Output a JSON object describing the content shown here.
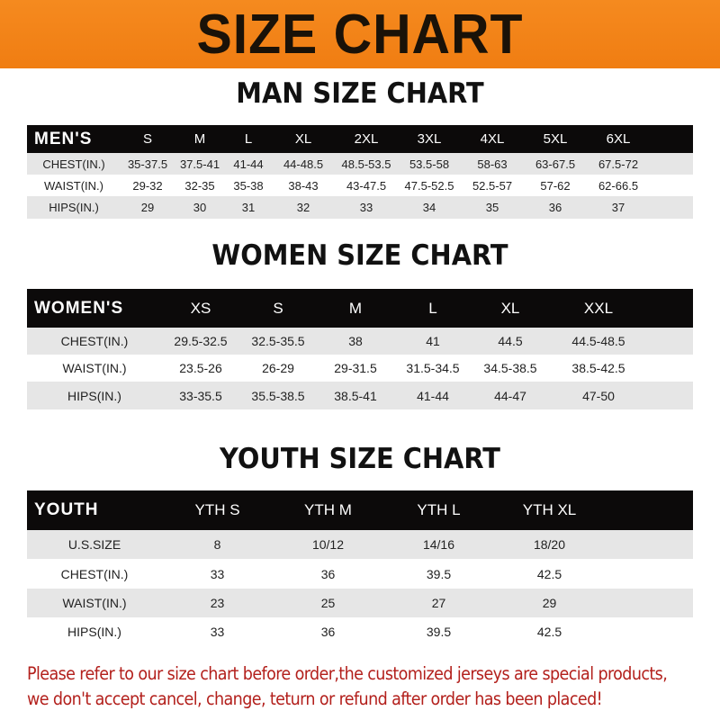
{
  "title": "SIZE CHART",
  "colors": {
    "banner": "#f58a1f",
    "header_row": "#0c0a0a",
    "stripe": "#e6e6e6",
    "notice": "#b3201c"
  },
  "men": {
    "title": "MAN SIZE CHART",
    "header": [
      "MEN'S",
      "S",
      "M",
      "L",
      "XL",
      "2XL",
      "3XL",
      "4XL",
      "5XL",
      "6XL"
    ],
    "rows": [
      [
        "CHEST(IN.)",
        "35-37.5",
        "37.5-41",
        "41-44",
        "44-48.5",
        "48.5-53.5",
        "53.5-58",
        "58-63",
        "63-67.5",
        "67.5-72"
      ],
      [
        "WAIST(IN.)",
        "29-32",
        "32-35",
        "35-38",
        "38-43",
        "43-47.5",
        "47.5-52.5",
        "52.5-57",
        "57-62",
        "62-66.5"
      ],
      [
        "HIPS(IN.)",
        "29",
        "30",
        "31",
        "32",
        "33",
        "34",
        "35",
        "36",
        "37"
      ]
    ]
  },
  "women": {
    "title": "WOMEN SIZE CHART",
    "header": [
      "WOMEN'S",
      "XS",
      "S",
      "M",
      "L",
      "XL",
      "XXL"
    ],
    "rows": [
      [
        "CHEST(IN.)",
        "29.5-32.5",
        "32.5-35.5",
        "38",
        "41",
        "44.5",
        "44.5-48.5"
      ],
      [
        "WAIST(IN.)",
        "23.5-26",
        "26-29",
        "29-31.5",
        "31.5-34.5",
        "34.5-38.5",
        "38.5-42.5"
      ],
      [
        "HIPS(IN.)",
        "33-35.5",
        "35.5-38.5",
        "38.5-41",
        "41-44",
        "44-47",
        "47-50"
      ]
    ]
  },
  "youth": {
    "title": "YOUTH SIZE CHART",
    "header": [
      "YOUTH",
      "YTH S",
      "YTH M",
      "YTH L",
      "YTH XL"
    ],
    "rows": [
      [
        "U.S.SIZE",
        "8",
        "10/12",
        "14/16",
        "18/20"
      ],
      [
        "CHEST(IN.)",
        "33",
        "36",
        "39.5",
        "42.5"
      ],
      [
        "WAIST(IN.)",
        "23",
        "25",
        "27",
        "29"
      ],
      [
        "HIPS(IN.)",
        "33",
        "36",
        "39.5",
        "42.5"
      ]
    ]
  },
  "notice": {
    "line1": "Please refer to our size chart before order,the customized jerseys are special products,",
    "line2": "we don't accept cancel, change, teturn or refund after order has been placed!"
  }
}
